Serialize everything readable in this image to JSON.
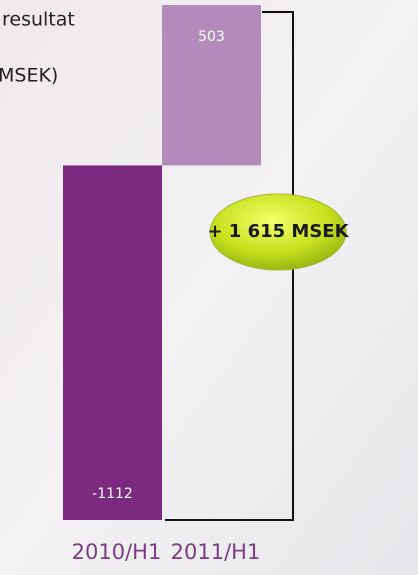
{
  "chart_data": {
    "type": "bar",
    "title": [
      "resultat",
      "MSEK)"
    ],
    "categories": [
      "2010/H1",
      "2011/H1"
    ],
    "values": [
      -1112,
      503
    ],
    "colors": [
      "#7c2a7f",
      "#b38bbb"
    ],
    "annotation": "+ 1 615 MSEK"
  }
}
